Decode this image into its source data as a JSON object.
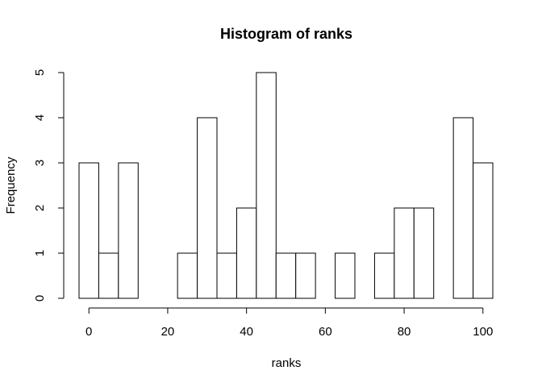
{
  "chart_data": {
    "type": "bar",
    "title": "Histogram of ranks",
    "xlabel": "ranks",
    "ylabel": "Frequency",
    "bin_width": 5,
    "bin_starts": [
      -2.5,
      2.5,
      7.5,
      12.5,
      17.5,
      22.5,
      27.5,
      32.5,
      37.5,
      42.5,
      47.5,
      52.5,
      57.5,
      62.5,
      67.5,
      72.5,
      77.5,
      82.5,
      87.5,
      92.5,
      97.5
    ],
    "values": [
      3,
      1,
      3,
      0,
      0,
      1,
      4,
      1,
      2,
      5,
      1,
      1,
      0,
      1,
      0,
      1,
      2,
      2,
      0,
      4,
      3
    ],
    "xlim": [
      -2.5,
      102.5
    ],
    "ylim": [
      0,
      5
    ],
    "x_ticks": [
      0,
      20,
      40,
      60,
      80,
      100
    ],
    "y_ticks": [
      0,
      1,
      2,
      3,
      4,
      5
    ],
    "grid": false,
    "colors": {
      "bar_fill": "#ffffff",
      "bar_stroke": "#000000"
    }
  }
}
